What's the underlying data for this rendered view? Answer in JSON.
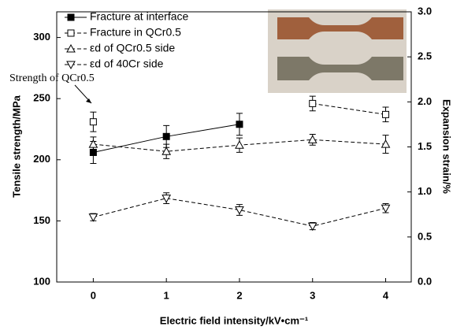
{
  "chart_data": {
    "type": "line",
    "x": [
      0,
      1,
      2,
      3,
      4
    ],
    "xlim": [
      -0.5,
      4.35
    ],
    "xticks": [
      0,
      1,
      2,
      3,
      4
    ],
    "ylim": [
      100,
      321
    ],
    "yticks": [
      100,
      150,
      200,
      250,
      300
    ],
    "y2lim": [
      0,
      3
    ],
    "y2ticks": [
      {
        "value": 0,
        "label": "0.0"
      },
      {
        "value": 0.5,
        "label": "0.5"
      },
      {
        "value": 1,
        "label": "1.0"
      },
      {
        "value": 1.5,
        "label": "1.5"
      },
      {
        "value": 2,
        "label": "2.0"
      },
      {
        "value": 2.5,
        "label": "2.5"
      },
      {
        "value": 3,
        "label": "3.0"
      }
    ],
    "x_label": "Electric field intensity/kV•cm⁻¹",
    "y_label": "Tensile strength/MPa",
    "y2_label": "Expansion strain/%",
    "annotation": "Strength of QCr0.5",
    "series": [
      {
        "name": "Fracture at interface",
        "color": "#000000",
        "marker": "square",
        "filled": true,
        "dashed": false,
        "values": [
          206,
          219,
          229,
          null,
          null
        ],
        "errors": [
          9,
          9,
          9,
          null,
          null
        ]
      },
      {
        "name": "Fracture in QCr0.5",
        "color": "#000000",
        "marker": "square",
        "filled": false,
        "dashed": true,
        "values": [
          231,
          null,
          null,
          246,
          237
        ],
        "errors": [
          8,
          null,
          null,
          6,
          6
        ]
      },
      {
        "name": "εd of QCr0.5 side",
        "color": "#000000",
        "marker": "triangle-up",
        "filled": false,
        "dashed": true,
        "axis": "y2",
        "values": [
          1.53,
          1.45,
          1.52,
          1.58,
          1.53
        ],
        "errors": [
          0.08,
          0.08,
          0.08,
          0.06,
          0.1
        ]
      },
      {
        "name": "εd of 40Cr side",
        "color": "#000000",
        "marker": "triangle-down",
        "filled": false,
        "dashed": true,
        "axis": "y2",
        "values": [
          0.72,
          0.93,
          0.8,
          0.62,
          0.82
        ],
        "errors": [
          0.04,
          0.06,
          0.06,
          0.04,
          0.05
        ]
      }
    ]
  }
}
